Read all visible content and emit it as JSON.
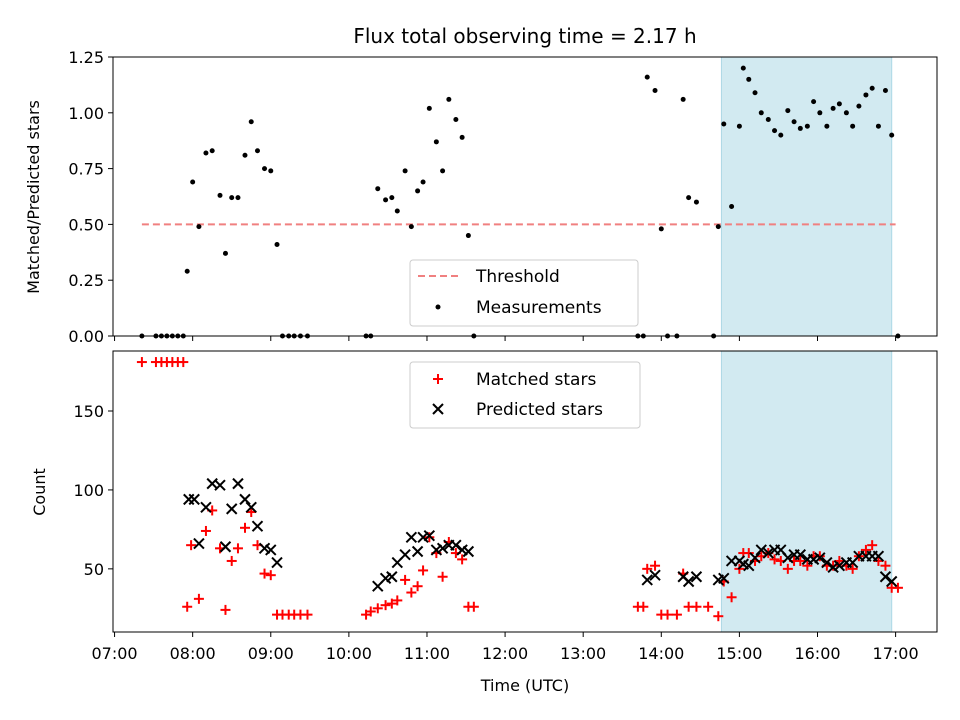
{
  "chart_data": [
    {
      "type": "scatter",
      "title": "Flux total observing time = 2.17 h",
      "ylabel": "Matched/Predicted stars",
      "xlabel": "",
      "xlim": [
        6.98,
        17.53
      ],
      "ylim": [
        0,
        1.25
      ],
      "y_ticks": [
        0,
        0.25,
        0.5,
        0.75,
        1.0,
        1.25
      ],
      "y_tick_labels": [
        "0.00",
        "0.25",
        "0.50",
        "0.75",
        "1.00",
        "1.25"
      ],
      "threshold": {
        "value": 0.5,
        "x_range": [
          7.35,
          17.0
        ],
        "color": "#f08080"
      },
      "highlight_range": [
        14.77,
        16.95
      ],
      "highlight_color": "#add8e6",
      "legend": {
        "position": "lower center",
        "entries": [
          "Threshold",
          "Measurements"
        ]
      },
      "series": [
        {
          "name": "Measurements",
          "points": [
            [
              7.35,
              0
            ],
            [
              7.53,
              0
            ],
            [
              7.6,
              0
            ],
            [
              7.67,
              0
            ],
            [
              7.74,
              0
            ],
            [
              7.81,
              0
            ],
            [
              7.88,
              0
            ],
            [
              7.93,
              0.29
            ],
            [
              8.0,
              0.69
            ],
            [
              8.08,
              0.49
            ],
            [
              8.17,
              0.82
            ],
            [
              8.25,
              0.83
            ],
            [
              8.35,
              0.63
            ],
            [
              8.42,
              0.37
            ],
            [
              8.5,
              0.62
            ],
            [
              8.58,
              0.62
            ],
            [
              8.67,
              0.81
            ],
            [
              8.75,
              0.96
            ],
            [
              8.83,
              0.83
            ],
            [
              8.92,
              0.75
            ],
            [
              9.0,
              0.74
            ],
            [
              9.08,
              0.41
            ],
            [
              9.15,
              0
            ],
            [
              9.23,
              0
            ],
            [
              9.3,
              0
            ],
            [
              9.38,
              0
            ],
            [
              9.47,
              0
            ],
            [
              10.22,
              0
            ],
            [
              10.28,
              0
            ],
            [
              10.37,
              0.66
            ],
            [
              10.47,
              0.61
            ],
            [
              10.55,
              0.62
            ],
            [
              10.62,
              0.56
            ],
            [
              10.72,
              0.74
            ],
            [
              10.8,
              0.49
            ],
            [
              10.88,
              0.65
            ],
            [
              10.95,
              0.69
            ],
            [
              11.03,
              1.02
            ],
            [
              11.12,
              0.87
            ],
            [
              11.2,
              0.74
            ],
            [
              11.28,
              1.06
            ],
            [
              11.37,
              0.97
            ],
            [
              11.45,
              0.89
            ],
            [
              11.53,
              0.45
            ],
            [
              11.6,
              0
            ],
            [
              13.7,
              0
            ],
            [
              13.77,
              0
            ],
            [
              13.82,
              1.16
            ],
            [
              13.92,
              1.1
            ],
            [
              14.0,
              0.48
            ],
            [
              14.08,
              0
            ],
            [
              14.2,
              0
            ],
            [
              14.28,
              1.06
            ],
            [
              14.35,
              0.62
            ],
            [
              14.45,
              0.6
            ],
            [
              14.67,
              0
            ],
            [
              14.73,
              0.49
            ],
            [
              14.8,
              0.95
            ],
            [
              14.9,
              0.58
            ],
            [
              15.0,
              0.94
            ],
            [
              15.05,
              1.2
            ],
            [
              15.12,
              1.15
            ],
            [
              15.2,
              1.09
            ],
            [
              15.28,
              1.0
            ],
            [
              15.37,
              0.97
            ],
            [
              15.45,
              0.92
            ],
            [
              15.53,
              0.9
            ],
            [
              15.62,
              1.01
            ],
            [
              15.7,
              0.96
            ],
            [
              15.78,
              0.93
            ],
            [
              15.87,
              0.94
            ],
            [
              15.95,
              1.05
            ],
            [
              16.03,
              1.0
            ],
            [
              16.12,
              0.94
            ],
            [
              16.2,
              1.02
            ],
            [
              16.28,
              1.04
            ],
            [
              16.37,
              1.0
            ],
            [
              16.45,
              0.94
            ],
            [
              16.53,
              1.03
            ],
            [
              16.62,
              1.08
            ],
            [
              16.7,
              1.11
            ],
            [
              16.78,
              0.94
            ],
            [
              16.87,
              1.1
            ],
            [
              16.95,
              0.9
            ],
            [
              17.03,
              0
            ]
          ]
        }
      ]
    },
    {
      "type": "scatter",
      "title": "",
      "ylabel": "Count",
      "xlabel": "Time (UTC)",
      "xlim": [
        6.98,
        17.53
      ],
      "ylim": [
        10,
        188
      ],
      "y_ticks": [
        50,
        100,
        150
      ],
      "y_tick_labels": [
        "50",
        "100",
        "150"
      ],
      "x_ticks": [
        7,
        8,
        9,
        10,
        11,
        12,
        13,
        14,
        15,
        16,
        17
      ],
      "x_tick_labels": [
        "07:00",
        "08:00",
        "09:00",
        "10:00",
        "11:00",
        "12:00",
        "13:00",
        "14:00",
        "15:00",
        "16:00",
        "17:00"
      ],
      "highlight_range": [
        14.77,
        16.95
      ],
      "highlight_color": "#add8e6",
      "legend": {
        "position": "upper center",
        "entries": [
          "Matched stars",
          "Predicted stars"
        ]
      },
      "series": [
        {
          "name": "Matched stars",
          "marker": "plus",
          "color": "#ff0000",
          "points": [
            [
              7.35,
              181
            ],
            [
              7.53,
              181
            ],
            [
              7.6,
              181
            ],
            [
              7.67,
              181
            ],
            [
              7.74,
              181
            ],
            [
              7.81,
              181
            ],
            [
              7.88,
              181
            ],
            [
              7.93,
              26
            ],
            [
              7.98,
              65
            ],
            [
              8.08,
              31
            ],
            [
              8.17,
              74
            ],
            [
              8.25,
              87
            ],
            [
              8.35,
              63
            ],
            [
              8.42,
              24
            ],
            [
              8.5,
              55
            ],
            [
              8.58,
              63
            ],
            [
              8.67,
              76
            ],
            [
              8.75,
              86
            ],
            [
              8.83,
              65
            ],
            [
              8.92,
              47
            ],
            [
              9.0,
              46
            ],
            [
              9.08,
              21
            ],
            [
              9.15,
              21
            ],
            [
              9.23,
              21
            ],
            [
              9.3,
              21
            ],
            [
              9.38,
              21
            ],
            [
              9.47,
              21
            ],
            [
              10.22,
              21
            ],
            [
              10.28,
              23
            ],
            [
              10.37,
              25
            ],
            [
              10.47,
              27
            ],
            [
              10.55,
              28
            ],
            [
              10.62,
              30
            ],
            [
              10.72,
              43
            ],
            [
              10.8,
              35
            ],
            [
              10.88,
              39
            ],
            [
              10.95,
              49
            ],
            [
              11.03,
              70
            ],
            [
              11.12,
              60
            ],
            [
              11.2,
              45
            ],
            [
              11.28,
              67
            ],
            [
              11.37,
              60
            ],
            [
              11.45,
              56
            ],
            [
              11.53,
              26
            ],
            [
              11.6,
              26
            ],
            [
              13.7,
              26
            ],
            [
              13.77,
              26
            ],
            [
              13.82,
              50
            ],
            [
              13.92,
              52
            ],
            [
              14.0,
              21
            ],
            [
              14.08,
              21
            ],
            [
              14.2,
              21
            ],
            [
              14.28,
              47
            ],
            [
              14.35,
              26
            ],
            [
              14.45,
              26
            ],
            [
              14.6,
              26
            ],
            [
              14.73,
              20
            ],
            [
              14.8,
              42
            ],
            [
              14.9,
              32
            ],
            [
              15.0,
              50
            ],
            [
              15.05,
              60
            ],
            [
              15.12,
              60
            ],
            [
              15.2,
              55
            ],
            [
              15.28,
              58
            ],
            [
              15.37,
              60
            ],
            [
              15.45,
              56
            ],
            [
              15.53,
              55
            ],
            [
              15.62,
              50
            ],
            [
              15.7,
              55
            ],
            [
              15.78,
              55
            ],
            [
              15.87,
              52
            ],
            [
              15.95,
              58
            ],
            [
              16.03,
              58
            ],
            [
              16.12,
              52
            ],
            [
              16.2,
              52
            ],
            [
              16.28,
              55
            ],
            [
              16.37,
              52
            ],
            [
              16.45,
              50
            ],
            [
              16.53,
              58
            ],
            [
              16.62,
              62
            ],
            [
              16.7,
              65
            ],
            [
              16.78,
              55
            ],
            [
              16.87,
              52
            ],
            [
              16.95,
              38
            ],
            [
              17.03,
              38
            ]
          ]
        },
        {
          "name": "Predicted stars",
          "marker": "x",
          "color": "#000000",
          "points": [
            [
              7.95,
              94
            ],
            [
              8.02,
              94
            ],
            [
              8.08,
              66
            ],
            [
              8.17,
              89
            ],
            [
              8.25,
              104
            ],
            [
              8.35,
              103
            ],
            [
              8.42,
              64
            ],
            [
              8.5,
              88
            ],
            [
              8.58,
              104
            ],
            [
              8.67,
              94
            ],
            [
              8.75,
              89
            ],
            [
              8.83,
              77
            ],
            [
              8.92,
              63
            ],
            [
              9.0,
              62
            ],
            [
              9.08,
              54
            ],
            [
              10.37,
              39
            ],
            [
              10.47,
              44
            ],
            [
              10.55,
              45
            ],
            [
              10.62,
              54
            ],
            [
              10.72,
              59
            ],
            [
              10.8,
              70
            ],
            [
              10.88,
              61
            ],
            [
              10.95,
              70
            ],
            [
              11.03,
              71
            ],
            [
              11.12,
              62
            ],
            [
              11.2,
              63
            ],
            [
              11.28,
              65
            ],
            [
              11.37,
              65
            ],
            [
              11.45,
              62
            ],
            [
              11.53,
              61
            ],
            [
              13.82,
              43
            ],
            [
              13.92,
              46
            ],
            [
              14.28,
              45
            ],
            [
              14.35,
              42
            ],
            [
              14.45,
              45
            ],
            [
              14.73,
              43
            ],
            [
              14.8,
              44
            ],
            [
              14.9,
              55
            ],
            [
              15.0,
              55
            ],
            [
              15.05,
              53
            ],
            [
              15.12,
              52
            ],
            [
              15.2,
              57
            ],
            [
              15.28,
              62
            ],
            [
              15.37,
              60
            ],
            [
              15.45,
              62
            ],
            [
              15.53,
              62
            ],
            [
              15.62,
              57
            ],
            [
              15.7,
              59
            ],
            [
              15.78,
              59
            ],
            [
              15.87,
              56
            ],
            [
              15.95,
              56
            ],
            [
              16.03,
              57
            ],
            [
              16.12,
              54
            ],
            [
              16.2,
              51
            ],
            [
              16.28,
              52
            ],
            [
              16.37,
              54
            ],
            [
              16.45,
              54
            ],
            [
              16.53,
              58
            ],
            [
              16.62,
              58
            ],
            [
              16.7,
              58
            ],
            [
              16.78,
              58
            ],
            [
              16.87,
              45
            ],
            [
              16.95,
              42
            ]
          ]
        }
      ]
    }
  ]
}
